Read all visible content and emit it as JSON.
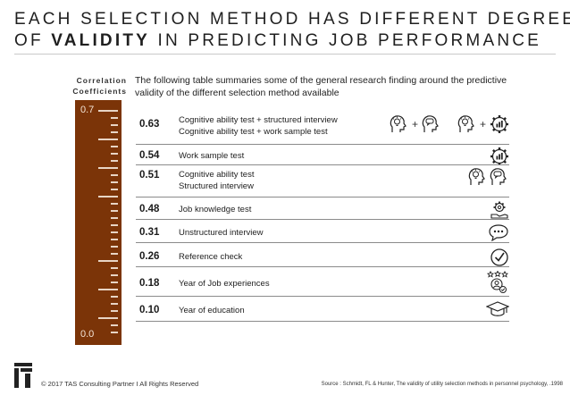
{
  "title": {
    "line1": "EACH SELECTION METHOD HAS DIFFERENT DEGREE",
    "line2_pre": "OF ",
    "line2_bold": "VALIDITY",
    "line2_post": " IN PREDICTING JOB PERFORMANCE"
  },
  "scale": {
    "label_line1": "Correlation",
    "label_line2": "Coefficients",
    "top_value": "0.7",
    "bottom_value": "0.0"
  },
  "intro": "The following table summaries some of the general research finding around the predictive validity of the different selection method available",
  "rows": [
    {
      "value": "0.63",
      "line1": "Cognitive ability test + structured interview",
      "line2": "Cognitive ability test + work sample test",
      "icons": [
        "bulb-head-icon",
        "plus",
        "chat-head-icon",
        "bulb-head-icon",
        "plus",
        "gear-chart-icon"
      ]
    },
    {
      "value": "0.54",
      "line1": "Work sample test",
      "line2": "",
      "icons": [
        "gear-chart-icon"
      ]
    },
    {
      "value": "0.51",
      "line1": "Cognitive ability test",
      "line2": "Structured interview",
      "icons": [
        "bulb-head-icon",
        "chat-head-icon"
      ]
    },
    {
      "value": "0.48",
      "line1": "Job knowledge test",
      "line2": "",
      "icons": [
        "gear-hand-icon"
      ]
    },
    {
      "value": "0.31",
      "line1": "Unstructured interview",
      "line2": "",
      "icons": [
        "chat-bubble-icon"
      ]
    },
    {
      "value": "0.26",
      "line1": "Reference check",
      "line2": "",
      "icons": [
        "check-circle-icon"
      ]
    },
    {
      "value": "0.18",
      "line1": "Year of Job experiences",
      "line2": "",
      "icons": [
        "stars-person-icon"
      ]
    },
    {
      "value": "0.10",
      "line1": "Year of education",
      "line2": "",
      "icons": [
        "graduation-cap-icon"
      ]
    }
  ],
  "footer": {
    "copyright": "© 2017 TAS Consulting Partner  I  All Rights Reserved",
    "source": "Source : Schmidt, FL & Hunter, The validity of utility selection methods in personnel psychology, .1998"
  },
  "colors": {
    "ruler": "#7b3408",
    "text": "#222222"
  }
}
